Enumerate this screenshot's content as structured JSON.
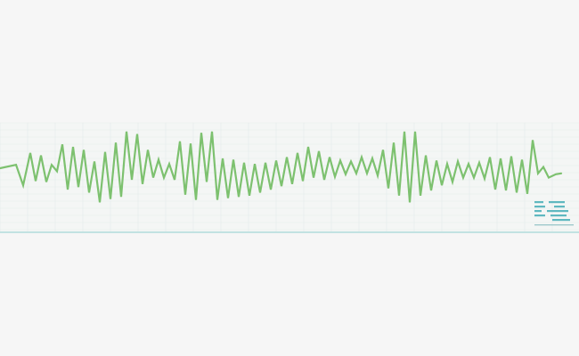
{
  "chart_data": {
    "type": "line",
    "title": "",
    "xlabel": "",
    "ylabel": "",
    "grid": true,
    "ylim": [
      -1,
      1
    ],
    "series": [
      {
        "color": "#7dc16f",
        "x": [
          0,
          18,
          26,
          34,
          40,
          46,
          52,
          58,
          64,
          70,
          76,
          82,
          88,
          94,
          100,
          106,
          112,
          118,
          124,
          130,
          136,
          142,
          148,
          154,
          160,
          166,
          172,
          178,
          184,
          190,
          196,
          202,
          208,
          214,
          220,
          226,
          232,
          238,
          244,
          250,
          256,
          262,
          268,
          274,
          280,
          286,
          292,
          298,
          304,
          310,
          316,
          322,
          328,
          334,
          340,
          346,
          352,
          358,
          364,
          370,
          376,
          382,
          388,
          394,
          400,
          406,
          412,
          418,
          424,
          430,
          436,
          442,
          448,
          454,
          460,
          466,
          472,
          478,
          484,
          490,
          496,
          502,
          508,
          514,
          520,
          526,
          532,
          538,
          544,
          550,
          556,
          562,
          568,
          574,
          580,
          586,
          592,
          598,
          604,
          610,
          616,
          624,
          630
        ],
        "y": [
          0.02,
          0.1,
          -0.38,
          0.38,
          -0.28,
          0.32,
          -0.3,
          0.1,
          -0.05,
          0.58,
          -0.48,
          0.52,
          -0.42,
          0.45,
          -0.55,
          0.18,
          -0.78,
          0.4,
          -0.7,
          0.62,
          -0.65,
          0.88,
          -0.25,
          0.82,
          -0.35,
          0.45,
          -0.2,
          0.22,
          -0.2,
          0.12,
          -0.25,
          0.65,
          -0.6,
          0.6,
          -0.72,
          0.85,
          -0.3,
          0.88,
          -0.72,
          0.25,
          -0.68,
          0.22,
          -0.65,
          0.15,
          -0.62,
          0.12,
          -0.55,
          0.15,
          -0.48,
          0.2,
          -0.4,
          0.28,
          -0.35,
          0.38,
          -0.28,
          0.52,
          -0.2,
          0.42,
          -0.25,
          0.28,
          -0.18,
          0.2,
          -0.12,
          0.18,
          -0.1,
          0.28,
          -0.1,
          0.25,
          -0.15,
          0.45,
          -0.45,
          0.62,
          -0.62,
          0.88,
          -0.78,
          0.88,
          -0.62,
          0.32,
          -0.5,
          0.2,
          -0.38,
          0.12,
          -0.3,
          0.18,
          -0.2,
          0.12,
          -0.2,
          0.15,
          -0.22,
          0.28,
          -0.48,
          0.25,
          -0.5,
          0.3,
          -0.55,
          0.22,
          -0.58,
          0.68,
          -0.1,
          0.05,
          -0.2,
          -0.12,
          -0.1
        ]
      }
    ],
    "legend": "bottom-right"
  }
}
